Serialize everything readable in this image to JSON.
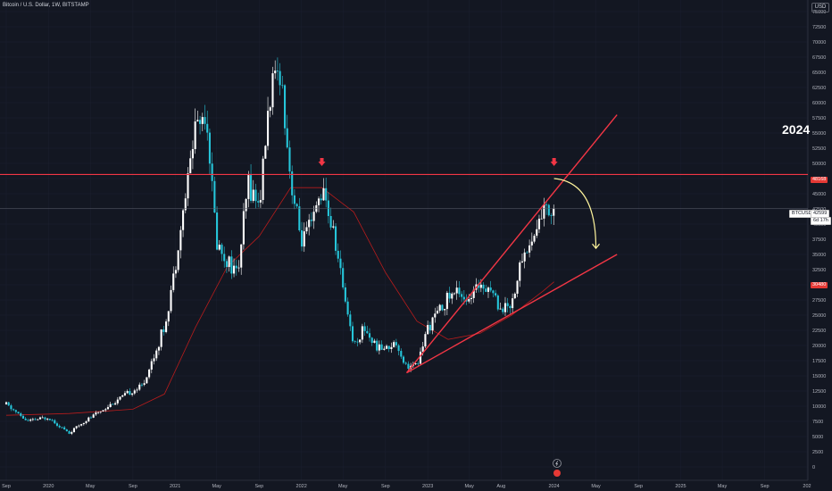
{
  "header": {
    "title": "Bitcoin / U.S. Dollar, 1W, BITSTAMP",
    "currency": "USD"
  },
  "annotations": {
    "year_label": "2024",
    "resistance_price": "48168",
    "current_symbol": "BTCUSD",
    "current_price": "42599",
    "countdown": "6d 17h",
    "support_price": "30480"
  },
  "colors": {
    "background": "#131722",
    "up": "#ffffff",
    "down": "#26c6da",
    "trend": "#f23645",
    "ma": "#b71c1c",
    "arrow": "#fff59d"
  },
  "chart_data": {
    "type": "candlestick",
    "title": "",
    "xlabel": "",
    "ylabel": "",
    "ylim": [
      -2000,
      78000
    ],
    "y_ticks": [
      0,
      2500,
      5000,
      7500,
      10000,
      12500,
      15000,
      17500,
      20000,
      22500,
      25000,
      27500,
      30000,
      32500,
      35000,
      37500,
      40000,
      42500,
      45000,
      47500,
      50000,
      52500,
      55000,
      57500,
      60000,
      62500,
      65000,
      67500,
      70000,
      72500,
      75000,
      77500
    ],
    "x_ticks": [
      {
        "label": "Sep",
        "date": "2019-09"
      },
      {
        "label": "2020",
        "date": "2020-01"
      },
      {
        "label": "May",
        "date": "2020-05"
      },
      {
        "label": "Sep",
        "date": "2020-09"
      },
      {
        "label": "2021",
        "date": "2021-01"
      },
      {
        "label": "May",
        "date": "2021-05"
      },
      {
        "label": "Sep",
        "date": "2021-09"
      },
      {
        "label": "2022",
        "date": "2022-01"
      },
      {
        "label": "May",
        "date": "2022-05"
      },
      {
        "label": "Sep",
        "date": "2022-09"
      },
      {
        "label": "2023",
        "date": "2023-01"
      },
      {
        "label": "May",
        "date": "2023-05"
      },
      {
        "label": "Aug",
        "date": "2023-08"
      },
      {
        "label": "2024",
        "date": "2024-01"
      },
      {
        "label": "May",
        "date": "2024-05"
      },
      {
        "label": "Sep",
        "date": "2024-09"
      },
      {
        "label": "2025",
        "date": "2025-01"
      },
      {
        "label": "May",
        "date": "2025-05"
      },
      {
        "label": "Sep",
        "date": "2025-09"
      },
      {
        "label": "202",
        "date": "2026-01"
      }
    ],
    "price_path": [
      [
        "2019-09",
        10300
      ],
      [
        "2019-11",
        7500
      ],
      [
        "2020-01",
        8200
      ],
      [
        "2020-03",
        5500
      ],
      [
        "2020-04",
        7000
      ],
      [
        "2020-06",
        9300
      ],
      [
        "2020-08",
        11500
      ],
      [
        "2020-10",
        13500
      ],
      [
        "2020-12",
        23000
      ],
      [
        "2021-01",
        33000
      ],
      [
        "2021-02",
        45000
      ],
      [
        "2021-03",
        57000
      ],
      [
        "2021-04",
        58000
      ],
      [
        "2021-05",
        37000
      ],
      [
        "2021-06",
        34000
      ],
      [
        "2021-07",
        32000
      ],
      [
        "2021-08",
        47000
      ],
      [
        "2021-09",
        43000
      ],
      [
        "2021-10",
        61000
      ],
      [
        "2021-11",
        66000
      ],
      [
        "2021-12",
        47000
      ],
      [
        "2022-01",
        37000
      ],
      [
        "2022-02",
        40000
      ],
      [
        "2022-03",
        46000
      ],
      [
        "2022-04",
        39000
      ],
      [
        "2022-05",
        30000
      ],
      [
        "2022-06",
        20000
      ],
      [
        "2022-07",
        23000
      ],
      [
        "2022-08",
        20000
      ],
      [
        "2022-09",
        19500
      ],
      [
        "2022-10",
        20500
      ],
      [
        "2022-11",
        16500
      ],
      [
        "2022-12",
        16600
      ],
      [
        "2023-01",
        23000
      ],
      [
        "2023-03",
        28000
      ],
      [
        "2023-04",
        29000
      ],
      [
        "2023-05",
        27000
      ],
      [
        "2023-06",
        30500
      ],
      [
        "2023-07",
        29500
      ],
      [
        "2023-08",
        26000
      ],
      [
        "2023-09",
        27000
      ],
      [
        "2023-10",
        34500
      ],
      [
        "2023-11",
        37500
      ],
      [
        "2023-12",
        42500
      ],
      [
        "2024-01",
        42599
      ]
    ],
    "moving_average": [
      [
        "2019-09",
        8500
      ],
      [
        "2020-03",
        8800
      ],
      [
        "2020-09",
        9500
      ],
      [
        "2020-12",
        12000
      ],
      [
        "2021-03",
        23000
      ],
      [
        "2021-06",
        33000
      ],
      [
        "2021-09",
        38000
      ],
      [
        "2021-12",
        46000
      ],
      [
        "2022-03",
        46000
      ],
      [
        "2022-06",
        42000
      ],
      [
        "2022-09",
        32000
      ],
      [
        "2022-12",
        24000
      ],
      [
        "2023-03",
        21000
      ],
      [
        "2023-06",
        22000
      ],
      [
        "2023-09",
        25000
      ],
      [
        "2023-12",
        29000
      ],
      [
        "2024-01",
        30480
      ]
    ],
    "horizontal_lines": [
      48168
    ],
    "trend_lines": [
      {
        "from": [
          "2022-11",
          15500
        ],
        "to": [
          "2024-07",
          58000
        ]
      },
      {
        "from": [
          "2022-11",
          15500
        ],
        "to": [
          "2024-07",
          35000
        ]
      }
    ],
    "price_marker": 42599,
    "down_arrows": [
      [
        "2022-03",
        50000
      ],
      [
        "2024-01",
        50000
      ]
    ],
    "projection_arrow": {
      "from": [
        "2024-01",
        47500
      ],
      "to": [
        "2024-05",
        36000
      ]
    }
  }
}
